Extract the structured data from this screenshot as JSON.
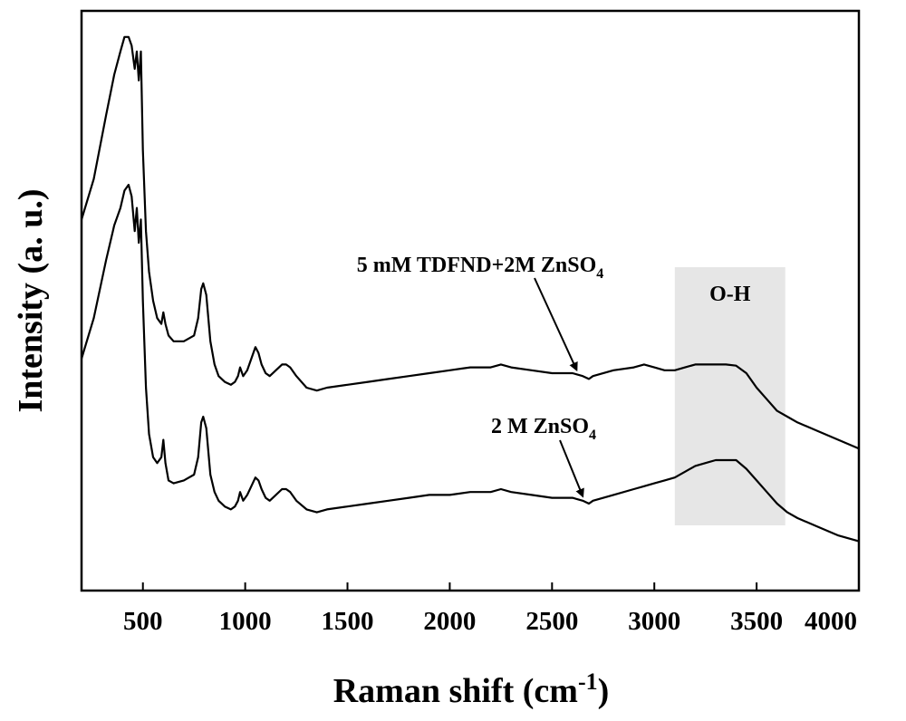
{
  "chart_data": {
    "type": "line",
    "xlabel": "Raman shift (cm",
    "xlabel_sup": "-1",
    "xlabel_close": ")",
    "ylabel": "Intensity (a. u.)",
    "xlim": [
      200,
      4000
    ],
    "xticks": [
      500,
      1000,
      1500,
      2000,
      2500,
      3000,
      3500,
      4000
    ],
    "y_ticks_shown": false,
    "highlight": {
      "label": "O-H",
      "x_range": [
        3100,
        3640
      ],
      "color": "#e6e6e6"
    },
    "series": [
      {
        "name": "5 mM TDFND+2M ZnSO",
        "name_sub": "4",
        "x": [
          200,
          260,
          320,
          360,
          390,
          410,
          430,
          445,
          460,
          470,
          480,
          490,
          500,
          515,
          530,
          550,
          570,
          590,
          600,
          610,
          625,
          650,
          700,
          750,
          770,
          785,
          795,
          810,
          830,
          850,
          870,
          900,
          930,
          950,
          965,
          975,
          990,
          1010,
          1030,
          1050,
          1065,
          1080,
          1100,
          1120,
          1150,
          1180,
          1200,
          1220,
          1250,
          1300,
          1350,
          1400,
          1500,
          1600,
          1700,
          1800,
          1900,
          2000,
          2100,
          2200,
          2250,
          2300,
          2400,
          2500,
          2600,
          2650,
          2680,
          2700,
          2800,
          2900,
          2950,
          3000,
          3050,
          3100,
          3150,
          3200,
          3250,
          3300,
          3350,
          3400,
          3450,
          3500,
          3550,
          3600,
          3650,
          3700,
          3800,
          3900,
          4000
        ],
        "y": [
          0.64,
          0.71,
          0.82,
          0.89,
          0.93,
          0.955,
          0.955,
          0.94,
          0.9,
          0.93,
          0.88,
          0.93,
          0.76,
          0.62,
          0.55,
          0.5,
          0.47,
          0.46,
          0.48,
          0.46,
          0.44,
          0.43,
          0.43,
          0.44,
          0.47,
          0.52,
          0.53,
          0.51,
          0.43,
          0.39,
          0.37,
          0.36,
          0.355,
          0.36,
          0.37,
          0.385,
          0.37,
          0.38,
          0.4,
          0.42,
          0.41,
          0.39,
          0.375,
          0.37,
          0.38,
          0.39,
          0.39,
          0.385,
          0.37,
          0.35,
          0.345,
          0.35,
          0.355,
          0.36,
          0.365,
          0.37,
          0.375,
          0.38,
          0.385,
          0.385,
          0.39,
          0.385,
          0.38,
          0.375,
          0.375,
          0.37,
          0.365,
          0.37,
          0.38,
          0.385,
          0.39,
          0.385,
          0.38,
          0.38,
          0.385,
          0.39,
          0.39,
          0.39,
          0.39,
          0.388,
          0.375,
          0.35,
          0.33,
          0.31,
          0.3,
          0.29,
          0.275,
          0.26,
          0.245
        ]
      },
      {
        "name": "2 M ZnSO",
        "name_sub": "4",
        "x": [
          200,
          260,
          320,
          360,
          390,
          410,
          430,
          445,
          460,
          470,
          480,
          490,
          500,
          515,
          530,
          550,
          570,
          590,
          600,
          610,
          625,
          650,
          700,
          750,
          770,
          785,
          795,
          810,
          830,
          850,
          870,
          900,
          930,
          950,
          965,
          975,
          990,
          1010,
          1030,
          1050,
          1065,
          1080,
          1100,
          1120,
          1150,
          1180,
          1200,
          1220,
          1250,
          1300,
          1350,
          1400,
          1500,
          1600,
          1700,
          1800,
          1900,
          2000,
          2100,
          2200,
          2250,
          2300,
          2400,
          2500,
          2600,
          2650,
          2680,
          2700,
          2800,
          2900,
          2950,
          3000,
          3050,
          3100,
          3150,
          3200,
          3250,
          3300,
          3350,
          3400,
          3450,
          3500,
          3550,
          3600,
          3650,
          3700,
          3800,
          3900,
          4000
        ],
        "y": [
          0.4,
          0.47,
          0.57,
          0.63,
          0.66,
          0.69,
          0.7,
          0.68,
          0.62,
          0.66,
          0.6,
          0.64,
          0.5,
          0.35,
          0.27,
          0.23,
          0.22,
          0.23,
          0.26,
          0.22,
          0.19,
          0.185,
          0.19,
          0.2,
          0.23,
          0.29,
          0.3,
          0.28,
          0.2,
          0.17,
          0.155,
          0.145,
          0.14,
          0.145,
          0.155,
          0.17,
          0.155,
          0.165,
          0.18,
          0.195,
          0.19,
          0.175,
          0.16,
          0.155,
          0.165,
          0.175,
          0.175,
          0.17,
          0.155,
          0.14,
          0.135,
          0.14,
          0.145,
          0.15,
          0.155,
          0.16,
          0.165,
          0.165,
          0.17,
          0.17,
          0.175,
          0.17,
          0.165,
          0.16,
          0.16,
          0.155,
          0.15,
          0.155,
          0.165,
          0.175,
          0.18,
          0.185,
          0.19,
          0.195,
          0.205,
          0.215,
          0.22,
          0.225,
          0.225,
          0.225,
          0.21,
          0.19,
          0.17,
          0.15,
          0.135,
          0.125,
          0.11,
          0.095,
          0.085
        ]
      }
    ],
    "annotations": [
      {
        "series": 0,
        "arrow_to_x": 2620
      },
      {
        "series": 1,
        "arrow_to_x": 2650
      }
    ]
  }
}
